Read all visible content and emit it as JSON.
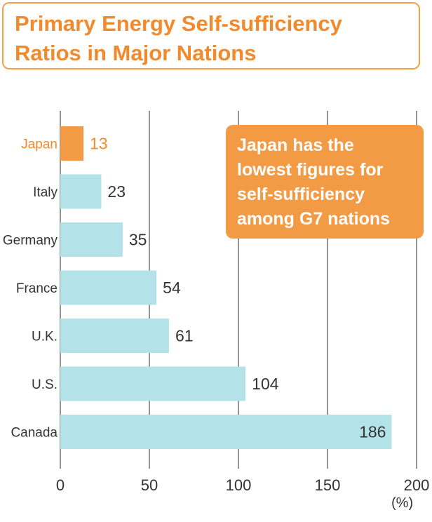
{
  "title": {
    "line1": "Primary Energy Self-sufficiency",
    "line2": "Ratios in Major Nations"
  },
  "note": {
    "lines": [
      "Japan has the",
      "lowest figures for",
      "self-sufficiency",
      "among G7 nations"
    ]
  },
  "unit_label": "(%)",
  "colors": {
    "highlight": "#f29a44",
    "bar": "#b3e3e8",
    "grid": "#4d4d4d",
    "text": "#333333",
    "accent_text": "#f08a2c"
  },
  "chart_data": {
    "type": "bar",
    "orientation": "horizontal",
    "categories": [
      "Japan",
      "Italy",
      "Germany",
      "France",
      "U.K.",
      "U.S.",
      "Canada"
    ],
    "values": [
      13,
      23,
      35,
      54,
      61,
      104,
      186
    ],
    "highlight_category": "Japan",
    "xlim": [
      0,
      200
    ],
    "xticks": [
      0,
      50,
      100,
      150,
      200
    ],
    "grid": true
  }
}
